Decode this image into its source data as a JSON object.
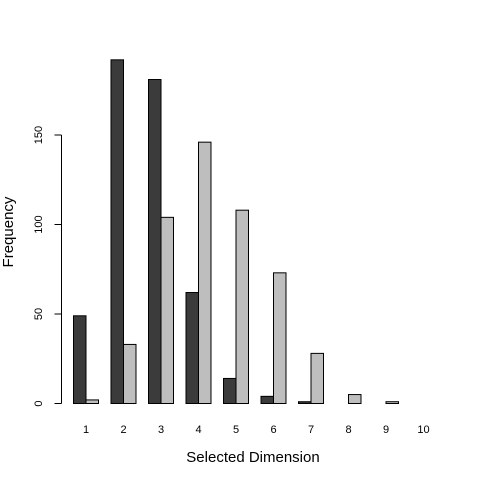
{
  "chart_data": {
    "type": "bar",
    "xlabel": "Selected Dimension",
    "ylabel": "Frequency",
    "categories": [
      "1",
      "2",
      "3",
      "4",
      "5",
      "6",
      "7",
      "8",
      "9",
      "10"
    ],
    "series": [
      {
        "color": "#3b3b3b",
        "values": [
          49,
          192,
          181,
          62,
          14,
          4,
          1,
          0,
          0,
          0
        ]
      },
      {
        "color": "#bebebe",
        "values": [
          2,
          33,
          104,
          146,
          108,
          73,
          28,
          5,
          1,
          0
        ]
      }
    ],
    "ylim": [
      0,
      192
    ],
    "yticks": [
      "0",
      "50",
      "100",
      "150"
    ],
    "grid": false,
    "legend": "none"
  }
}
